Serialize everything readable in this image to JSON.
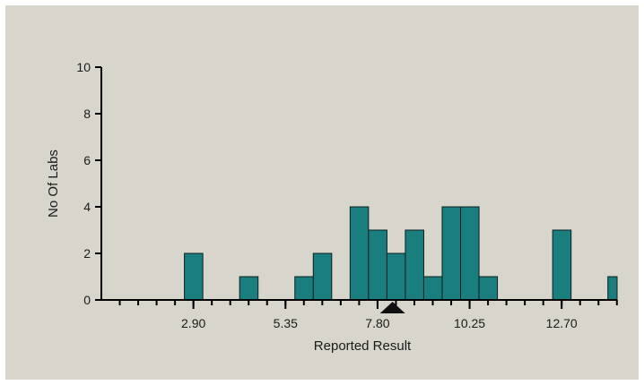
{
  "chart_data": {
    "type": "bar",
    "title": "",
    "xlabel": "Reported Result",
    "ylabel": "No Of Labs",
    "bin_width": 0.49,
    "xlim": [
      0.45,
      14.175
    ],
    "ylim": [
      0,
      10
    ],
    "y_ticks": [
      0,
      2,
      4,
      6,
      8,
      10
    ],
    "x_tick_labels": [
      "2.90",
      "5.35",
      "7.80",
      "10.25",
      "12.70"
    ],
    "x_tick_values": [
      2.9,
      5.35,
      7.8,
      10.25,
      12.7
    ],
    "bars": [
      {
        "x": 2.905,
        "value": 2
      },
      {
        "x": 4.375,
        "value": 1
      },
      {
        "x": 5.845,
        "value": 1
      },
      {
        "x": 6.335,
        "value": 2
      },
      {
        "x": 7.315,
        "value": 4
      },
      {
        "x": 7.805,
        "value": 3
      },
      {
        "x": 8.295,
        "value": 2
      },
      {
        "x": 8.785,
        "value": 3
      },
      {
        "x": 9.275,
        "value": 1
      },
      {
        "x": 9.765,
        "value": 4
      },
      {
        "x": 10.255,
        "value": 4
      },
      {
        "x": 10.745,
        "value": 1
      },
      {
        "x": 12.705,
        "value": 3
      },
      {
        "x": 14.175,
        "value": 1
      }
    ],
    "marker": {
      "x": 8.2,
      "shape": "triangle-up"
    },
    "bar_color": "#1b7e7e",
    "bar_edge_color": "#0a1f1f",
    "background_color": "#d8d5cc",
    "grid": false
  }
}
